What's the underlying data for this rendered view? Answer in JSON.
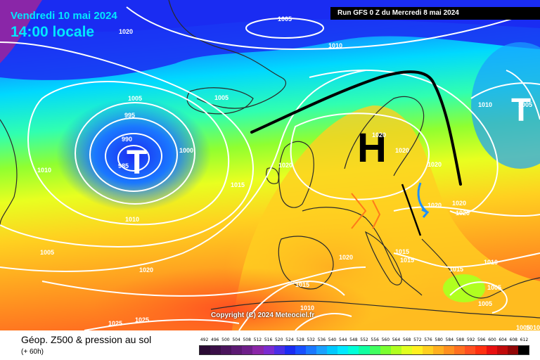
{
  "header": {
    "valid_date": "Vendredi 10 mai 2024",
    "local_time": "14:00 locale",
    "run_info": "Run GFS 0 Z du Mercredi 8 mai 2024"
  },
  "copyright": "Copyright (C) 2024 Meteociel.fr",
  "footer": {
    "caption": "Géop. Z500 & pression au sol",
    "lead_time": "(+ 60h)"
  },
  "scale": {
    "labels": [
      "492",
      "496",
      "500",
      "504",
      "508",
      "512",
      "516",
      "520",
      "524",
      "528",
      "532",
      "536",
      "540",
      "544",
      "548",
      "552",
      "556",
      "560",
      "564",
      "568",
      "572",
      "576",
      "580",
      "584",
      "588",
      "592",
      "596",
      "600",
      "604",
      "608",
      "612"
    ],
    "colors": [
      "#2a0a33",
      "#3a0f47",
      "#4a145c",
      "#5c1a73",
      "#6e1f8a",
      "#8a26a8",
      "#7a2bd0",
      "#4a2ee6",
      "#1a2cf2",
      "#1850ff",
      "#1a78ff",
      "#1aa0ff",
      "#00c8ff",
      "#00e8ff",
      "#00ffd8",
      "#10ffa0",
      "#40ff60",
      "#7aff30",
      "#b0ff20",
      "#e0ff20",
      "#fff020",
      "#ffd020",
      "#ffb020",
      "#ff9020",
      "#ff7020",
      "#ff5020",
      "#ff3010",
      "#e81010",
      "#c00a0a",
      "#900606",
      "#000000"
    ]
  },
  "systems": [
    {
      "type": "H",
      "name": "high-center-letter"
    },
    {
      "type": "T",
      "name": "low-center-letter-atlantic"
    },
    {
      "type": "T",
      "name": "low-center-letter-east"
    }
  ],
  "isobar_labels": [
    {
      "text": "1020",
      "name": "isobar-label-1020-nw"
    },
    {
      "text": "1005",
      "name": "isobar-label-1005-top"
    },
    {
      "text": "1010",
      "name": "isobar-label-1010-top"
    },
    {
      "text": "1005",
      "name": "isobar-label-1005-west"
    },
    {
      "text": "995",
      "name": "isobar-label-995"
    },
    {
      "text": "990",
      "name": "isobar-label-990"
    },
    {
      "text": "985",
      "name": "isobar-label-985"
    },
    {
      "text": "1000",
      "name": "isobar-label-1000"
    },
    {
      "text": "1005",
      "name": "isobar-label-1005-iceland"
    },
    {
      "text": "1010",
      "name": "isobar-label-1010-west"
    },
    {
      "text": "1015",
      "name": "isobar-label-1015-atlantic"
    },
    {
      "text": "1010",
      "name": "isobar-label-1010-mid"
    },
    {
      "text": "1005",
      "name": "isobar-label-1005-south"
    },
    {
      "text": "1020",
      "name": "isobar-label-1020-south"
    },
    {
      "text": "1025",
      "name": "isobar-label-1025-a"
    },
    {
      "text": "1025",
      "name": "isobar-label-1025-b"
    },
    {
      "text": "1020",
      "name": "isobar-label-1020-uk"
    },
    {
      "text": "1020",
      "name": "isobar-label-1020-scand"
    },
    {
      "text": "1020",
      "name": "isobar-label-1020-balt"
    },
    {
      "text": "1020",
      "name": "isobar-label-1020-poland"
    },
    {
      "text": "1020",
      "name": "isobar-label-1020-carp"
    },
    {
      "text": "1020",
      "name": "isobar-label-1020-east"
    },
    {
      "text": "1020",
      "name": "isobar-label-1020-east2"
    },
    {
      "text": "1020",
      "name": "isobar-label-1020-med"
    },
    {
      "text": "1015",
      "name": "isobar-label-1015-adriatic"
    },
    {
      "text": "1015",
      "name": "isobar-label-1015-balkan"
    },
    {
      "text": "1015",
      "name": "isobar-label-1015-greece"
    },
    {
      "text": "1010",
      "name": "isobar-label-1010-turkey"
    },
    {
      "text": "1005",
      "name": "isobar-label-1005-aegean"
    },
    {
      "text": "1005",
      "name": "isobar-label-1005-cyprus"
    },
    {
      "text": "1015",
      "name": "isobar-label-1015-africa"
    },
    {
      "text": "1010",
      "name": "isobar-label-1010-africa"
    },
    {
      "text": "1010",
      "name": "isobar-label-1010-ne"
    },
    {
      "text": "1005",
      "name": "isobar-label-1005-ne"
    },
    {
      "text": "1005",
      "name": "isobar-label-1005-se"
    },
    {
      "text": "1010",
      "name": "isobar-label-1010-se"
    }
  ],
  "colors": {
    "isobar": "#ffffff",
    "front": "#000000",
    "arrow_orange": "#ff7a1a",
    "arrow_blue": "#1e90ff",
    "coast": "#2a2a2a"
  }
}
